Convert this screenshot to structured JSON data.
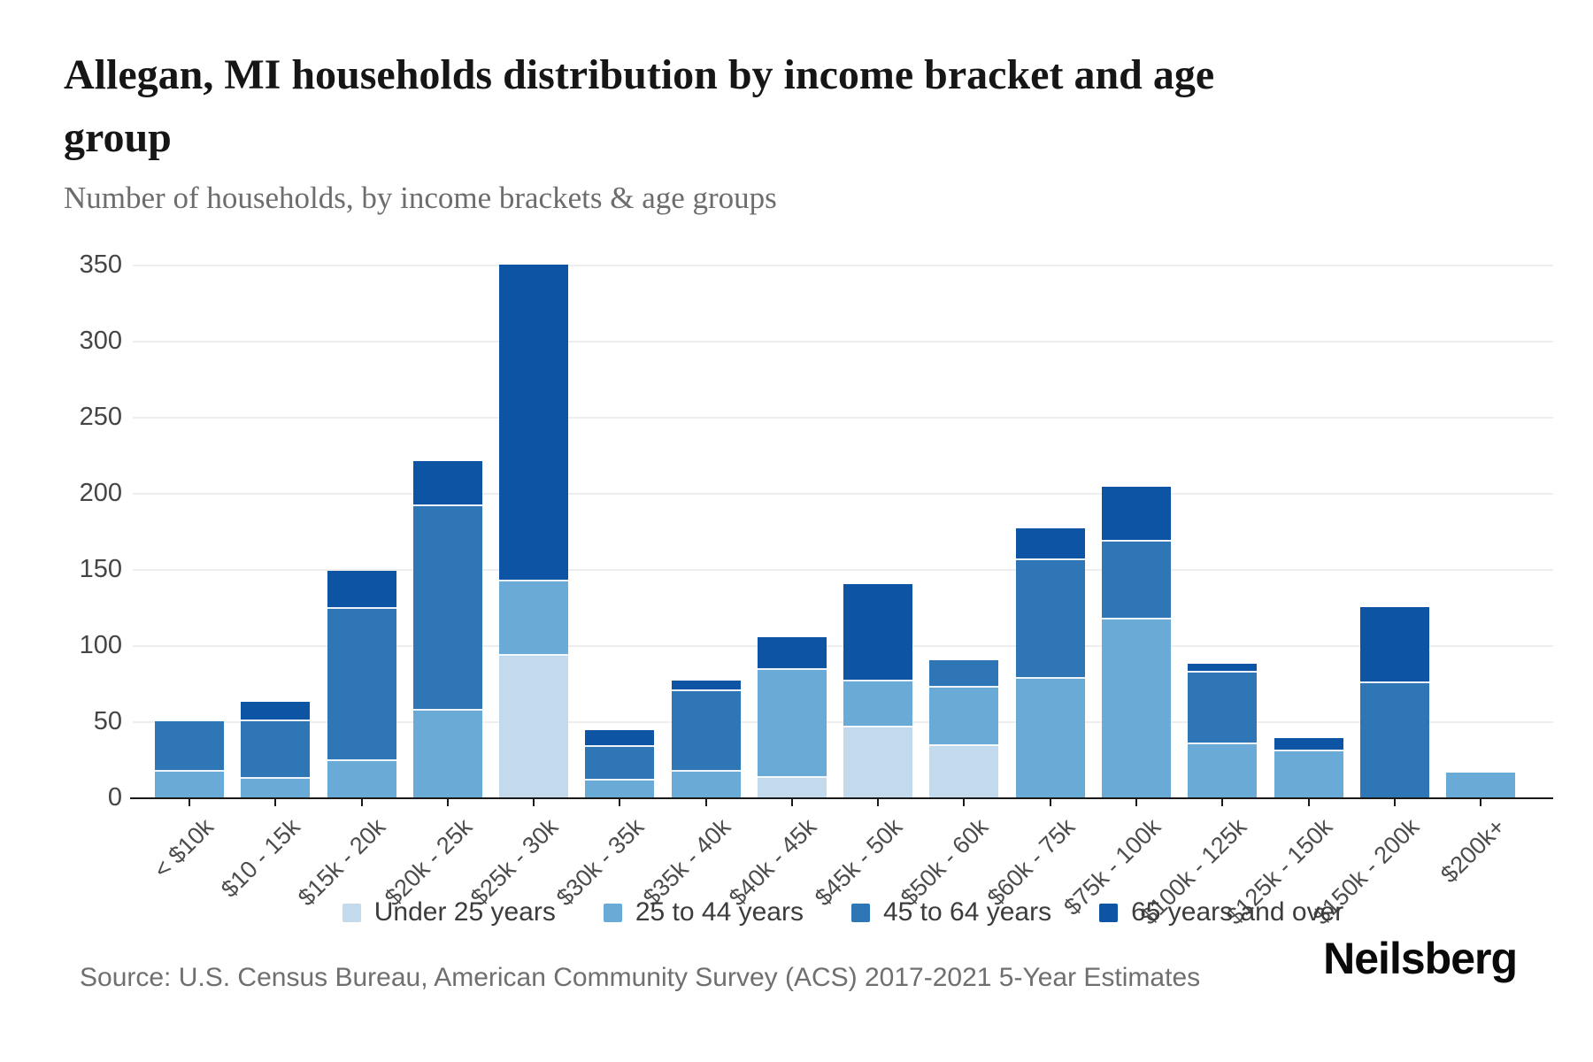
{
  "page": {
    "title": "Allegan, MI households distribution by income bracket and age group",
    "subtitle": "Number of households, by income brackets & age groups",
    "source": "Source: U.S. Census Bureau, American Community Survey (ACS) 2017-2021 5-Year Estimates",
    "brand": "Neilsberg"
  },
  "chart_data": {
    "type": "bar",
    "stacked": true,
    "title": "Allegan, MI households distribution by income bracket and age group",
    "subtitle": "Number of households, by income brackets & age groups",
    "xlabel": "",
    "ylabel": "Number of households",
    "ylim": [
      0,
      350
    ],
    "yticks": [
      0,
      50,
      100,
      150,
      200,
      250,
      300,
      350
    ],
    "grid": true,
    "legend_position": "bottom",
    "categories": [
      "< $10k",
      "$10 - 15k",
      "$15k - 20k",
      "$20k - 25k",
      "$25k - 30k",
      "$30k - 35k",
      "$35k - 40k",
      "$40k - 45k",
      "$45k - 50k",
      "$50k - 60k",
      "$60k - 75k",
      "$75k - 100k",
      "$100k - 125k",
      "$125k - 150k",
      "$150k - 200k",
      "$200k+"
    ],
    "series": [
      {
        "name": "Under 25 years",
        "color": "#c3daec",
        "values": [
          0,
          0,
          0,
          0,
          93,
          0,
          0,
          13,
          46,
          34,
          0,
          0,
          0,
          0,
          0,
          0
        ]
      },
      {
        "name": "25 to 44 years",
        "color": "#69aad7",
        "values": [
          17,
          12,
          24,
          57,
          49,
          11,
          17,
          71,
          30,
          38,
          78,
          117,
          35,
          30,
          0,
          16
        ]
      },
      {
        "name": "45 to 64 years",
        "color": "#2e76b6",
        "values": [
          33,
          38,
          100,
          134,
          0,
          22,
          53,
          0,
          0,
          18,
          78,
          51,
          47,
          0,
          75,
          0
        ]
      },
      {
        "name": "65 years and over",
        "color": "#0d55a4",
        "values": [
          0,
          13,
          25,
          30,
          208,
          11,
          7,
          21,
          64,
          0,
          21,
          36,
          6,
          9,
          50,
          0
        ]
      }
    ],
    "totals": [
      50,
      63,
      149,
      221,
      350,
      44,
      77,
      105,
      140,
      90,
      177,
      204,
      88,
      39,
      125,
      16
    ],
    "colors": {
      "axis": "#1a1a1a",
      "gridline": "#eeeeee",
      "tick_text": "#454545",
      "category_text": "#4c4c4c"
    }
  }
}
